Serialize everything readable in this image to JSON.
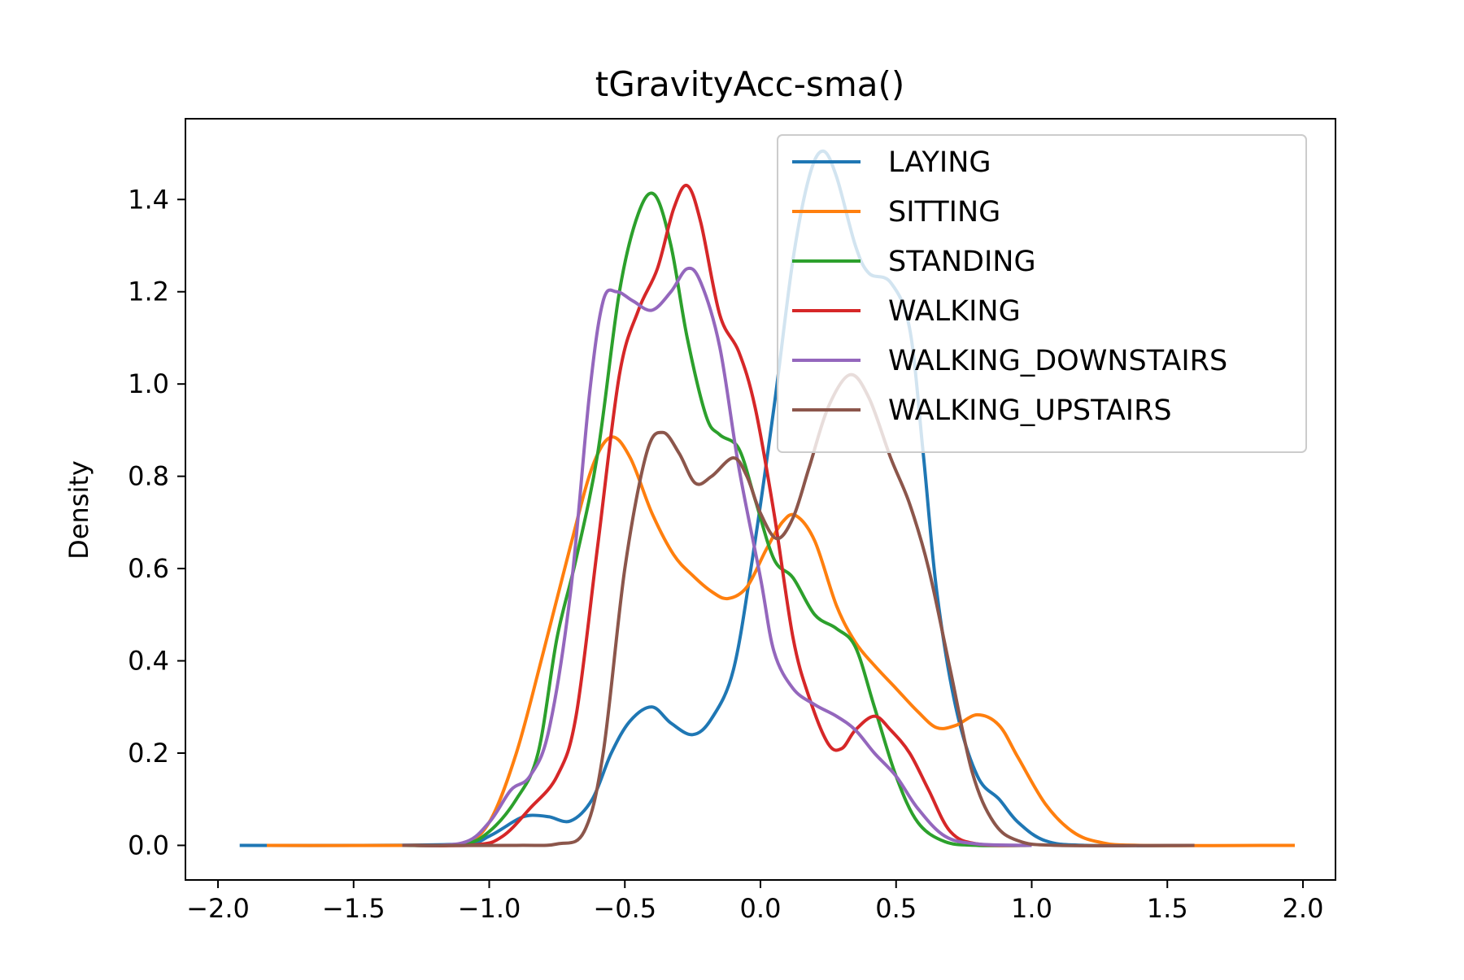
{
  "chart_data": {
    "type": "line",
    "title": "tGravityAcc-sma()",
    "xlabel": "",
    "ylabel": "Density",
    "xlim": [
      -2.12,
      2.12
    ],
    "ylim": [
      -0.075,
      1.575
    ],
    "xticks": [
      {
        "value": -2.0,
        "label": "−2.0"
      },
      {
        "value": -1.5,
        "label": "−1.5"
      },
      {
        "value": -1.0,
        "label": "−1.0"
      },
      {
        "value": -0.5,
        "label": "−0.5"
      },
      {
        "value": 0.0,
        "label": "0.0"
      },
      {
        "value": 0.5,
        "label": "0.5"
      },
      {
        "value": 1.0,
        "label": "1.0"
      },
      {
        "value": 1.5,
        "label": "1.5"
      },
      {
        "value": 2.0,
        "label": "2.0"
      }
    ],
    "yticks": [
      {
        "value": 0.0,
        "label": "0.0"
      },
      {
        "value": 0.2,
        "label": "0.2"
      },
      {
        "value": 0.4,
        "label": "0.4"
      },
      {
        "value": 0.6,
        "label": "0.6"
      },
      {
        "value": 0.8,
        "label": "0.8"
      },
      {
        "value": 1.0,
        "label": "1.0"
      },
      {
        "value": 1.2,
        "label": "1.2"
      },
      {
        "value": 1.4,
        "label": "1.4"
      }
    ],
    "grid": false,
    "legend_position": "top-right",
    "series": [
      {
        "name": "LAYING",
        "color": "#1f77b4",
        "points": [
          [
            -1.92,
            0.0
          ],
          [
            -1.5,
            0.0
          ],
          [
            -1.1,
            0.003
          ],
          [
            -1.0,
            0.02
          ],
          [
            -0.9,
            0.055
          ],
          [
            -0.85,
            0.065
          ],
          [
            -0.78,
            0.062
          ],
          [
            -0.7,
            0.053
          ],
          [
            -0.62,
            0.1
          ],
          [
            -0.55,
            0.2
          ],
          [
            -0.48,
            0.27
          ],
          [
            -0.4,
            0.3
          ],
          [
            -0.33,
            0.265
          ],
          [
            -0.25,
            0.24
          ],
          [
            -0.18,
            0.275
          ],
          [
            -0.1,
            0.38
          ],
          [
            -0.03,
            0.62
          ],
          [
            0.05,
            0.95
          ],
          [
            0.12,
            1.27
          ],
          [
            0.18,
            1.45
          ],
          [
            0.23,
            1.505
          ],
          [
            0.28,
            1.45
          ],
          [
            0.35,
            1.3
          ],
          [
            0.4,
            1.24
          ],
          [
            0.48,
            1.22
          ],
          [
            0.55,
            1.12
          ],
          [
            0.6,
            0.85
          ],
          [
            0.65,
            0.55
          ],
          [
            0.72,
            0.3
          ],
          [
            0.8,
            0.15
          ],
          [
            0.88,
            0.1
          ],
          [
            0.95,
            0.05
          ],
          [
            1.05,
            0.01
          ],
          [
            1.2,
            0.0
          ],
          [
            1.6,
            0.0
          ]
        ]
      },
      {
        "name": "SITTING",
        "color": "#ff7f0e",
        "points": [
          [
            -1.82,
            0.0
          ],
          [
            -1.3,
            0.0
          ],
          [
            -1.1,
            0.005
          ],
          [
            -1.0,
            0.05
          ],
          [
            -0.9,
            0.2
          ],
          [
            -0.8,
            0.42
          ],
          [
            -0.7,
            0.65
          ],
          [
            -0.62,
            0.82
          ],
          [
            -0.55,
            0.885
          ],
          [
            -0.48,
            0.84
          ],
          [
            -0.4,
            0.72
          ],
          [
            -0.32,
            0.63
          ],
          [
            -0.25,
            0.585
          ],
          [
            -0.18,
            0.55
          ],
          [
            -0.12,
            0.535
          ],
          [
            -0.05,
            0.56
          ],
          [
            0.02,
            0.64
          ],
          [
            0.08,
            0.7
          ],
          [
            0.13,
            0.715
          ],
          [
            0.2,
            0.66
          ],
          [
            0.28,
            0.52
          ],
          [
            0.35,
            0.44
          ],
          [
            0.42,
            0.39
          ],
          [
            0.5,
            0.34
          ],
          [
            0.58,
            0.29
          ],
          [
            0.65,
            0.255
          ],
          [
            0.72,
            0.26
          ],
          [
            0.8,
            0.283
          ],
          [
            0.88,
            0.26
          ],
          [
            0.95,
            0.19
          ],
          [
            1.05,
            0.09
          ],
          [
            1.15,
            0.03
          ],
          [
            1.25,
            0.007
          ],
          [
            1.4,
            0.0
          ],
          [
            1.97,
            0.0
          ]
        ]
      },
      {
        "name": "STANDING",
        "color": "#2ca02c",
        "points": [
          [
            -1.32,
            0.0
          ],
          [
            -1.1,
            0.002
          ],
          [
            -1.0,
            0.03
          ],
          [
            -0.9,
            0.1
          ],
          [
            -0.82,
            0.2
          ],
          [
            -0.75,
            0.45
          ],
          [
            -0.68,
            0.62
          ],
          [
            -0.6,
            0.85
          ],
          [
            -0.52,
            1.2
          ],
          [
            -0.45,
            1.37
          ],
          [
            -0.39,
            1.41
          ],
          [
            -0.33,
            1.3
          ],
          [
            -0.27,
            1.1
          ],
          [
            -0.2,
            0.93
          ],
          [
            -0.15,
            0.89
          ],
          [
            -0.08,
            0.86
          ],
          [
            -0.02,
            0.75
          ],
          [
            0.05,
            0.62
          ],
          [
            0.12,
            0.58
          ],
          [
            0.2,
            0.5
          ],
          [
            0.28,
            0.47
          ],
          [
            0.35,
            0.43
          ],
          [
            0.42,
            0.3
          ],
          [
            0.5,
            0.15
          ],
          [
            0.58,
            0.05
          ],
          [
            0.68,
            0.008
          ],
          [
            0.8,
            0.0
          ],
          [
            1.0,
            0.0
          ]
        ]
      },
      {
        "name": "WALKING",
        "color": "#d62728",
        "points": [
          [
            -1.32,
            0.0
          ],
          [
            -1.05,
            0.001
          ],
          [
            -0.95,
            0.02
          ],
          [
            -0.85,
            0.08
          ],
          [
            -0.75,
            0.15
          ],
          [
            -0.68,
            0.28
          ],
          [
            -0.6,
            0.65
          ],
          [
            -0.52,
            1.02
          ],
          [
            -0.45,
            1.16
          ],
          [
            -0.38,
            1.25
          ],
          [
            -0.32,
            1.38
          ],
          [
            -0.27,
            1.43
          ],
          [
            -0.22,
            1.35
          ],
          [
            -0.15,
            1.15
          ],
          [
            -0.08,
            1.07
          ],
          [
            -0.02,
            0.95
          ],
          [
            0.05,
            0.72
          ],
          [
            0.12,
            0.45
          ],
          [
            0.18,
            0.32
          ],
          [
            0.25,
            0.22
          ],
          [
            0.3,
            0.21
          ],
          [
            0.35,
            0.25
          ],
          [
            0.42,
            0.28
          ],
          [
            0.48,
            0.25
          ],
          [
            0.55,
            0.2
          ],
          [
            0.62,
            0.12
          ],
          [
            0.7,
            0.03
          ],
          [
            0.8,
            0.003
          ],
          [
            1.0,
            0.0
          ]
        ]
      },
      {
        "name": "WALKING_DOWNSTAIRS",
        "color": "#9467bd",
        "points": [
          [
            -1.32,
            0.0
          ],
          [
            -1.1,
            0.005
          ],
          [
            -1.0,
            0.05
          ],
          [
            -0.92,
            0.12
          ],
          [
            -0.85,
            0.15
          ],
          [
            -0.78,
            0.25
          ],
          [
            -0.7,
            0.55
          ],
          [
            -0.63,
            0.98
          ],
          [
            -0.58,
            1.18
          ],
          [
            -0.53,
            1.2
          ],
          [
            -0.47,
            1.18
          ],
          [
            -0.4,
            1.16
          ],
          [
            -0.33,
            1.2
          ],
          [
            -0.27,
            1.25
          ],
          [
            -0.22,
            1.22
          ],
          [
            -0.15,
            1.08
          ],
          [
            -0.08,
            0.82
          ],
          [
            0.0,
            0.58
          ],
          [
            0.05,
            0.42
          ],
          [
            0.12,
            0.34
          ],
          [
            0.2,
            0.305
          ],
          [
            0.28,
            0.28
          ],
          [
            0.35,
            0.25
          ],
          [
            0.42,
            0.2
          ],
          [
            0.5,
            0.15
          ],
          [
            0.58,
            0.08
          ],
          [
            0.68,
            0.02
          ],
          [
            0.8,
            0.003
          ],
          [
            1.0,
            0.0
          ]
        ]
      },
      {
        "name": "WALKING_UPSTAIRS",
        "color": "#8c564b",
        "points": [
          [
            -1.32,
            0.0
          ],
          [
            -0.9,
            0.0
          ],
          [
            -0.75,
            0.003
          ],
          [
            -0.65,
            0.03
          ],
          [
            -0.58,
            0.2
          ],
          [
            -0.5,
            0.6
          ],
          [
            -0.42,
            0.85
          ],
          [
            -0.36,
            0.895
          ],
          [
            -0.3,
            0.85
          ],
          [
            -0.24,
            0.785
          ],
          [
            -0.18,
            0.8
          ],
          [
            -0.1,
            0.84
          ],
          [
            -0.05,
            0.8
          ],
          [
            0.0,
            0.72
          ],
          [
            0.06,
            0.665
          ],
          [
            0.12,
            0.71
          ],
          [
            0.18,
            0.82
          ],
          [
            0.25,
            0.95
          ],
          [
            0.33,
            1.02
          ],
          [
            0.4,
            0.97
          ],
          [
            0.48,
            0.84
          ],
          [
            0.55,
            0.74
          ],
          [
            0.62,
            0.6
          ],
          [
            0.7,
            0.38
          ],
          [
            0.78,
            0.16
          ],
          [
            0.86,
            0.05
          ],
          [
            0.95,
            0.01
          ],
          [
            1.1,
            0.0
          ],
          [
            1.6,
            0.0
          ]
        ]
      }
    ]
  }
}
